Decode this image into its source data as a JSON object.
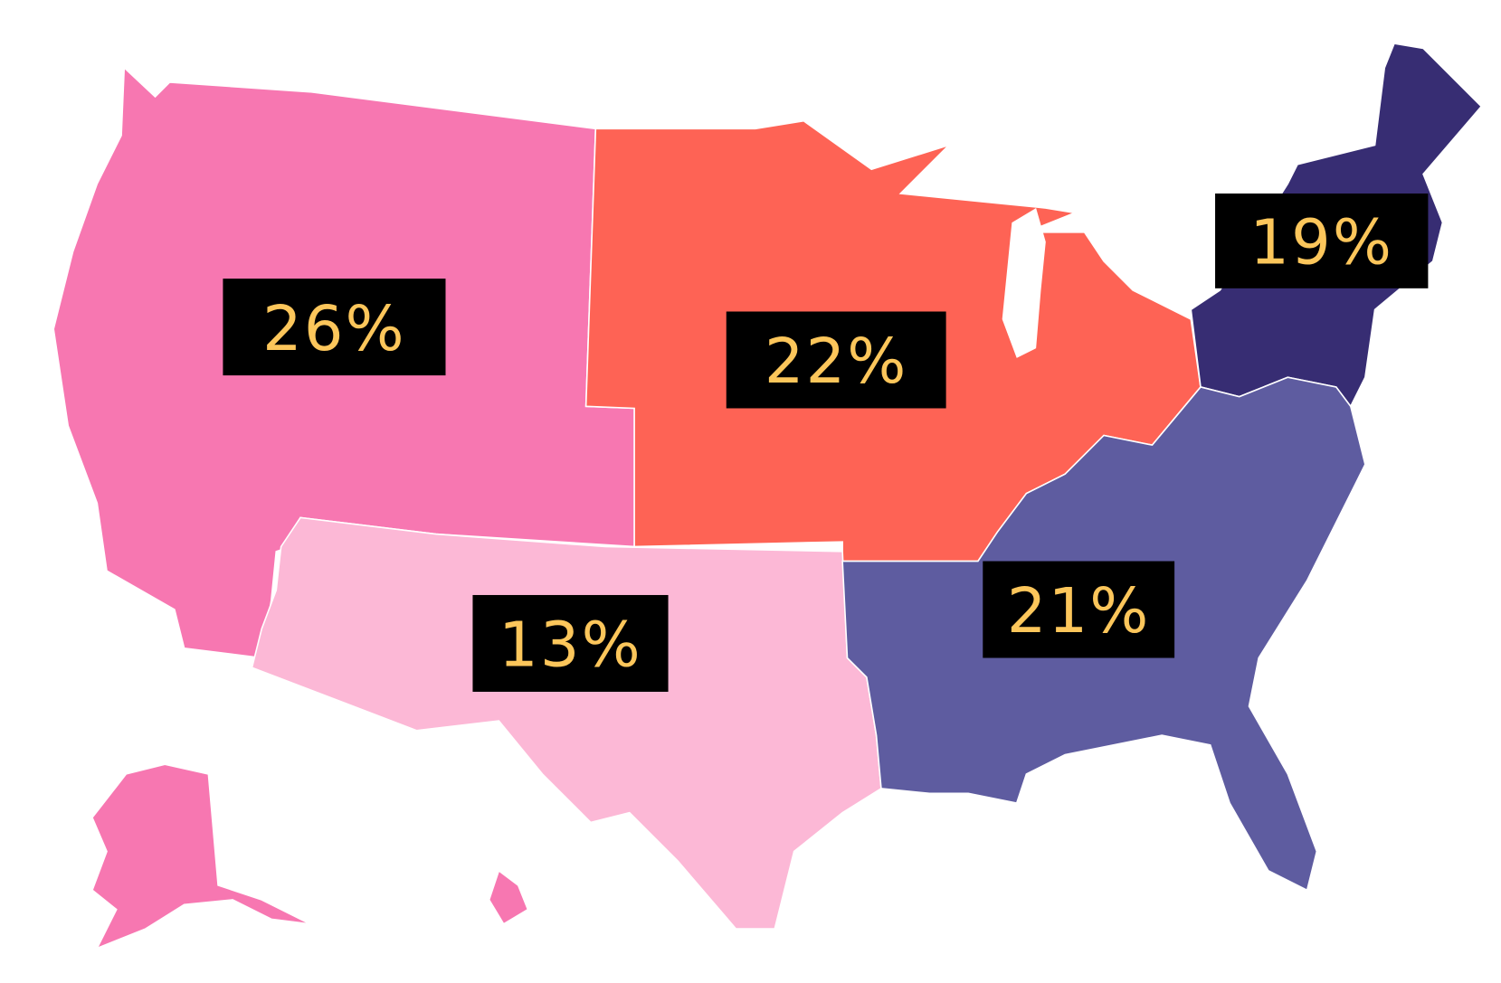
{
  "regions": [
    {
      "label": "26%",
      "color": "#f777b1"
    },
    {
      "label": "22%",
      "color": "#fe6355"
    },
    {
      "label": "19%",
      "color": "#372d73"
    },
    {
      "label": "13%",
      "color": "#fcb8d6"
    },
    {
      "label": "21%",
      "color": "#5e5ca0"
    }
  ]
}
